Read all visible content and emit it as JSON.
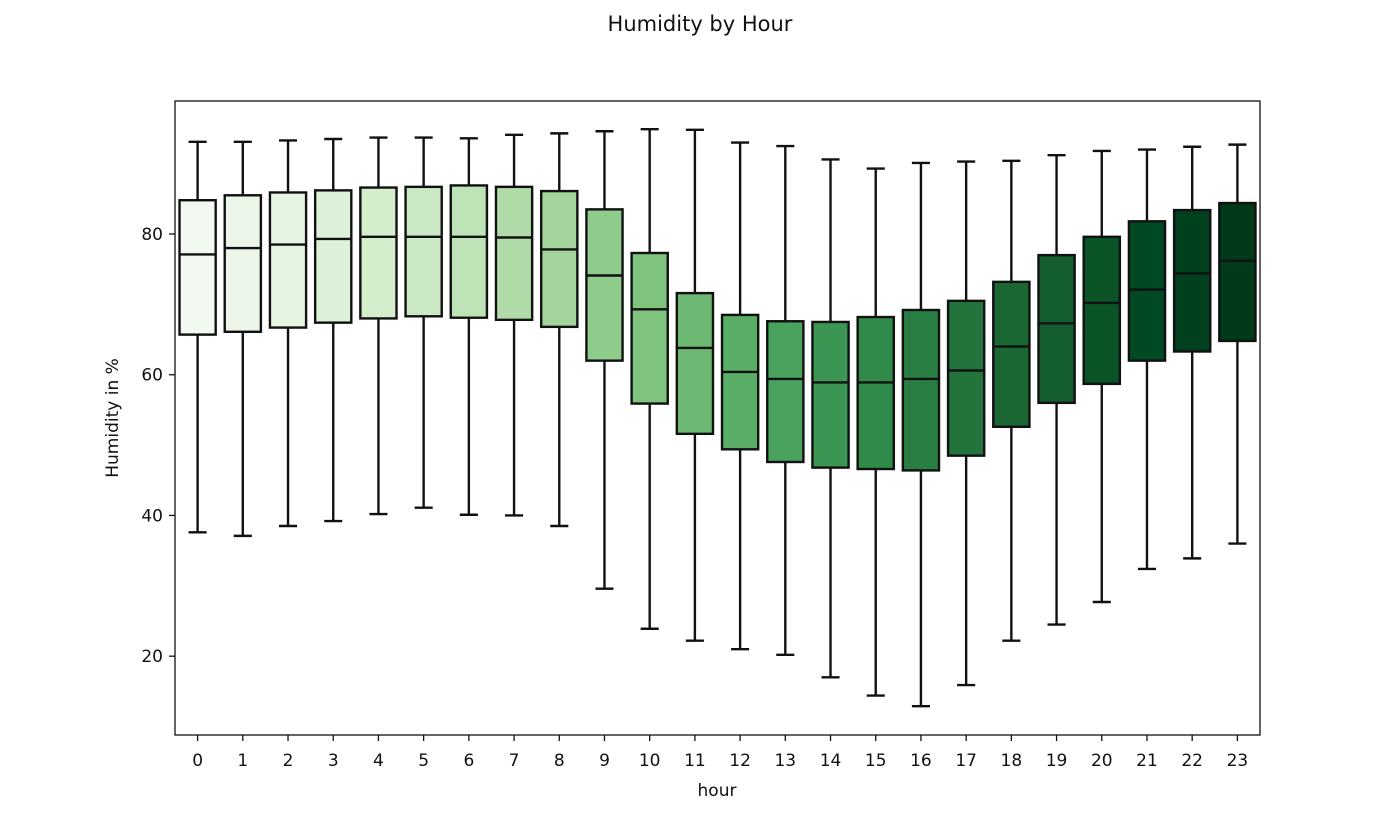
{
  "chart_data": {
    "type": "box",
    "title": "Humidity by Hour",
    "xlabel": "hour",
    "ylabel": "Humidity in %",
    "ylim": [
      8.8,
      98.9
    ],
    "yticks": [
      20,
      40,
      60,
      80
    ],
    "grid": false,
    "categories": [
      "0",
      "1",
      "2",
      "3",
      "4",
      "5",
      "6",
      "7",
      "8",
      "9",
      "10",
      "11",
      "12",
      "13",
      "14",
      "15",
      "16",
      "17",
      "18",
      "19",
      "20",
      "21",
      "22",
      "23"
    ],
    "whisker_low": [
      37.6,
      37.1,
      38.5,
      39.2,
      40.2,
      41.1,
      40.1,
      40.0,
      38.5,
      29.6,
      23.9,
      22.2,
      21.0,
      20.2,
      17.0,
      14.4,
      12.9,
      15.9,
      22.2,
      24.5,
      27.7,
      32.4,
      33.9,
      36.0
    ],
    "q1": [
      65.7,
      66.1,
      66.7,
      67.4,
      68.0,
      68.3,
      68.1,
      67.8,
      66.8,
      62.0,
      55.9,
      51.6,
      49.4,
      47.6,
      46.8,
      46.6,
      46.4,
      48.5,
      52.6,
      56.0,
      58.7,
      62.0,
      63.3,
      64.8
    ],
    "median": [
      77.1,
      78.0,
      78.5,
      79.3,
      79.6,
      79.6,
      79.6,
      79.5,
      77.8,
      74.1,
      69.3,
      63.8,
      60.4,
      59.4,
      58.9,
      58.9,
      59.4,
      60.6,
      64.0,
      67.3,
      70.2,
      72.1,
      74.4,
      76.2
    ],
    "q3": [
      84.8,
      85.5,
      85.9,
      86.2,
      86.6,
      86.7,
      86.9,
      86.7,
      86.1,
      83.5,
      77.3,
      71.6,
      68.5,
      67.6,
      67.5,
      68.2,
      69.2,
      70.5,
      73.2,
      77.0,
      79.6,
      81.8,
      83.4,
      84.4
    ],
    "whisker_high": [
      93.1,
      93.1,
      93.3,
      93.5,
      93.7,
      93.7,
      93.6,
      94.1,
      94.3,
      94.6,
      94.9,
      94.8,
      93.0,
      92.5,
      90.6,
      89.3,
      90.1,
      90.3,
      90.4,
      91.2,
      91.8,
      92.0,
      92.4,
      92.7
    ],
    "colors": [
      "#f2f9f1",
      "#ebf6e8",
      "#e5f4e1",
      "#ddf0d9",
      "#d3edcd",
      "#cae8c3",
      "#bde3b6",
      "#b0dba8",
      "#a2d49b",
      "#8fcc8c",
      "#7fc37f",
      "#6cb872",
      "#59ad67",
      "#49a25e",
      "#3c9653",
      "#308a4a",
      "#287e43",
      "#22733c",
      "#1a6734",
      "#135d2e",
      "#0a5326",
      "#004922",
      "#00401d",
      "#003a19"
    ],
    "box_edge_color": "#111111"
  }
}
